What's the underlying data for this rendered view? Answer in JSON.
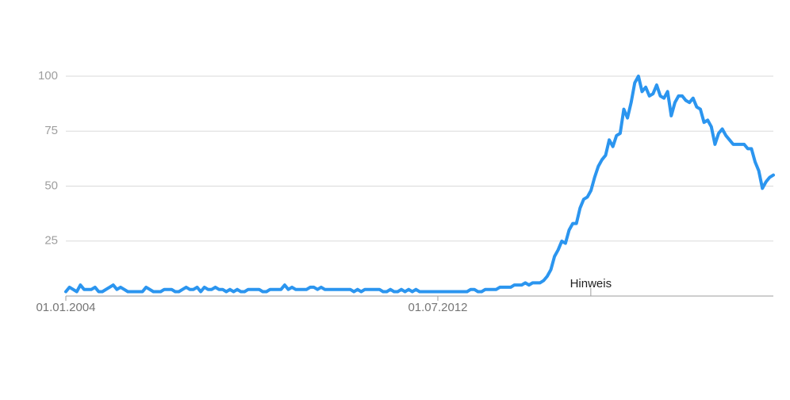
{
  "chart_data": {
    "type": "line",
    "categories": [
      "01.01.2004",
      null,
      null,
      null,
      null,
      null,
      null,
      null,
      null,
      null,
      null,
      null,
      null,
      null,
      null,
      null,
      null,
      null,
      null,
      null,
      null,
      null,
      null,
      null,
      null,
      null,
      null,
      null,
      null,
      null,
      null,
      null,
      null,
      null,
      null,
      null,
      null,
      null,
      null,
      null,
      null,
      null,
      null,
      null,
      null,
      null,
      null,
      null,
      null,
      null,
      null,
      null,
      null,
      null,
      null,
      null,
      null,
      null,
      null,
      null,
      null,
      null,
      null,
      null,
      null,
      null,
      null,
      null,
      null,
      null,
      null,
      null,
      null,
      null,
      null,
      null,
      null,
      null,
      null,
      null,
      null,
      null,
      null,
      null,
      null,
      null,
      null,
      null,
      null,
      null,
      null,
      null,
      null,
      null,
      null,
      null,
      null,
      null,
      null,
      null,
      null,
      null,
      "01.07.2012",
      null,
      null,
      null,
      null,
      null,
      null,
      null,
      null,
      null,
      null,
      null,
      null,
      null,
      null,
      null,
      null,
      null,
      null,
      null,
      null,
      null,
      null,
      null,
      null,
      null,
      null,
      null,
      null,
      null,
      null,
      null,
      null,
      null,
      null,
      null,
      null,
      null,
      null,
      null,
      null,
      null,
      null,
      null,
      null,
      null,
      null,
      null,
      null,
      null,
      null,
      null,
      null,
      null,
      null,
      null,
      null,
      null,
      null,
      null,
      null,
      null,
      null,
      null,
      null,
      null,
      null,
      null,
      null,
      null,
      null,
      null,
      null,
      null,
      null,
      null,
      null,
      null,
      null,
      null,
      null,
      null,
      null,
      null,
      null,
      null,
      null,
      null,
      null,
      null,
      null,
      null,
      null
    ],
    "series": [
      {
        "color": "#2b95ef",
        "values": [
          2,
          4,
          3,
          2,
          5,
          3,
          3,
          3,
          4,
          2,
          2,
          3,
          4,
          5,
          3,
          4,
          3,
          2,
          2,
          2,
          2,
          2,
          4,
          3,
          2,
          2,
          2,
          3,
          3,
          3,
          2,
          2,
          3,
          4,
          3,
          3,
          4,
          2,
          4,
          3,
          3,
          4,
          3,
          3,
          2,
          3,
          2,
          3,
          2,
          2,
          3,
          3,
          3,
          3,
          2,
          2,
          3,
          3,
          3,
          3,
          5,
          3,
          4,
          3,
          3,
          3,
          3,
          4,
          4,
          3,
          4,
          3,
          3,
          3,
          3,
          3,
          3,
          3,
          3,
          2,
          3,
          2,
          3,
          3,
          3,
          3,
          3,
          2,
          2,
          3,
          2,
          2,
          3,
          2,
          3,
          2,
          3,
          2,
          2,
          2,
          2,
          2,
          2,
          2,
          2,
          2,
          2,
          2,
          2,
          2,
          2,
          3,
          3,
          2,
          2,
          3,
          3,
          3,
          3,
          4,
          4,
          4,
          4,
          5,
          5,
          5,
          6,
          5,
          6,
          6,
          6,
          7,
          9,
          12,
          18,
          21,
          25,
          24,
          30,
          33,
          33,
          40,
          44,
          45,
          48,
          54,
          59,
          62,
          64,
          71,
          68,
          73,
          74,
          85,
          81,
          88,
          97,
          100,
          93,
          95,
          91,
          92,
          96,
          91,
          90,
          93,
          82,
          88,
          91,
          91,
          89,
          88,
          90,
          86,
          85,
          79,
          80,
          77,
          69,
          74,
          76,
          73,
          71,
          69,
          69,
          69,
          69,
          67,
          67,
          61,
          57,
          49,
          52,
          54,
          55
        ]
      }
    ],
    "ylim": [
      0,
      100
    ],
    "yticks": [
      25,
      50,
      75,
      100
    ],
    "grid": true,
    "annotation": "Hinweis"
  }
}
